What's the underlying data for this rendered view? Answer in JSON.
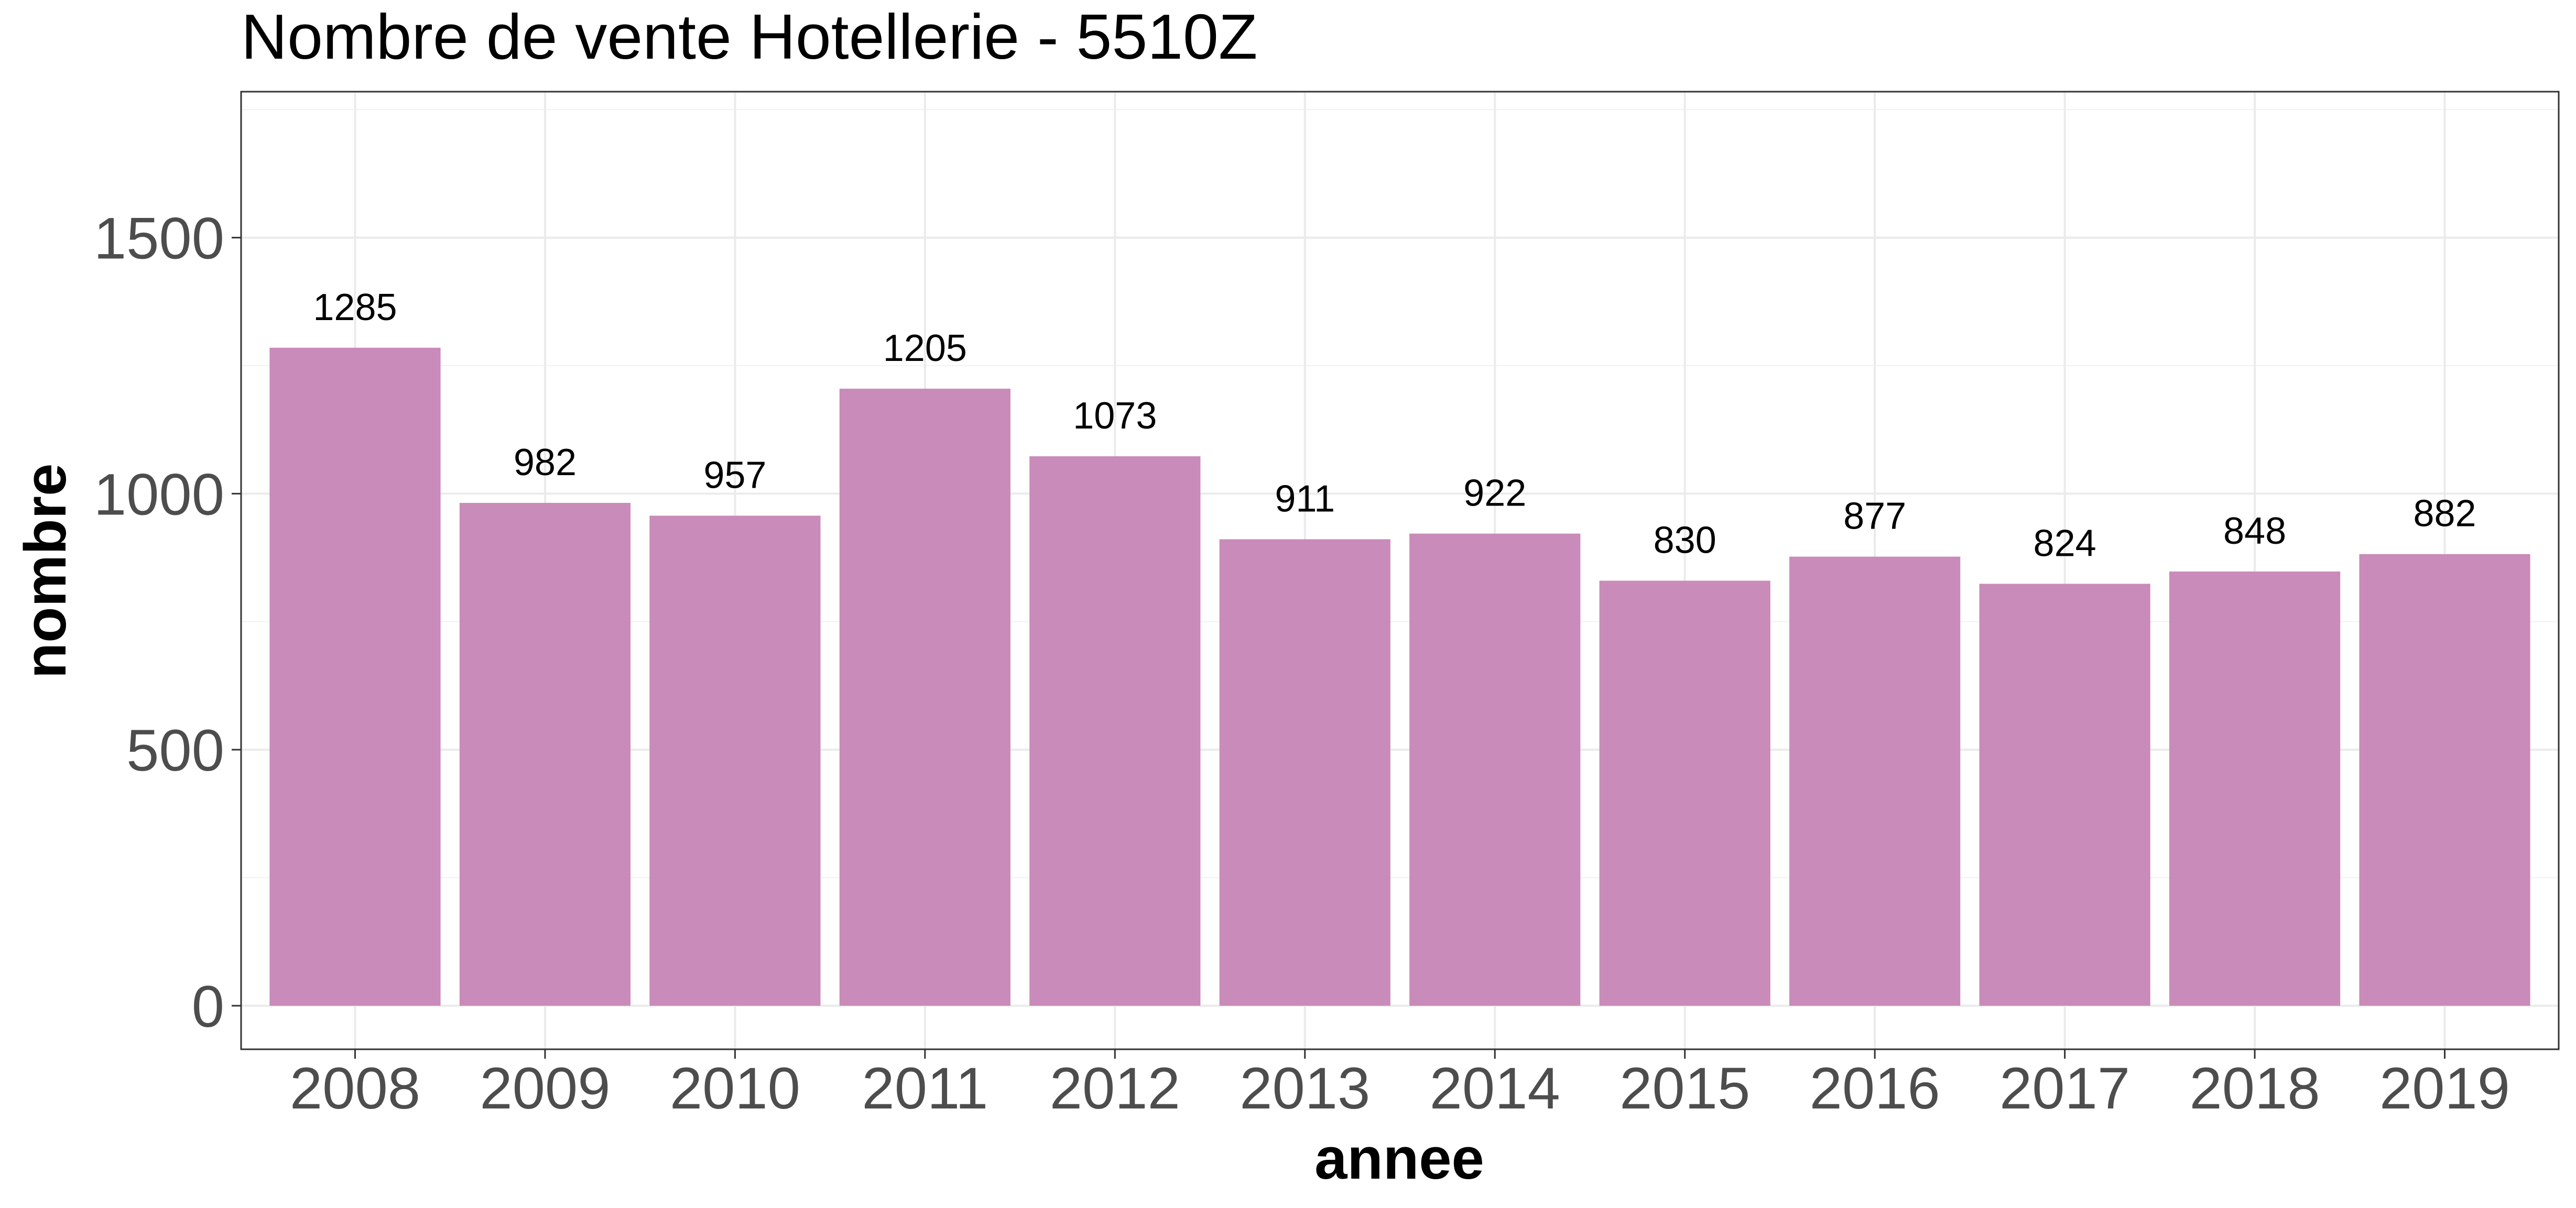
{
  "chart_data": {
    "type": "bar",
    "title": "Nombre de vente Hotellerie - 5510Z",
    "xlabel": "annee",
    "ylabel": "nombre",
    "categories": [
      "2008",
      "2009",
      "2010",
      "2011",
      "2012",
      "2013",
      "2014",
      "2015",
      "2016",
      "2017",
      "2018",
      "2019"
    ],
    "values": [
      1285,
      982,
      957,
      1205,
      1073,
      911,
      922,
      830,
      877,
      824,
      848,
      882
    ],
    "data_labels": [
      "1285",
      "982",
      "957",
      "1205",
      "1073",
      "911",
      "922",
      "830",
      "877",
      "824",
      "848",
      "882"
    ],
    "ylim": [
      -85,
      1785
    ],
    "yticks": [
      0,
      500,
      1000,
      1500
    ],
    "ytick_labels": [
      "0",
      "500",
      "1000",
      "1500"
    ],
    "grid": true,
    "legend": false,
    "bar_color": "#c98bb9"
  }
}
